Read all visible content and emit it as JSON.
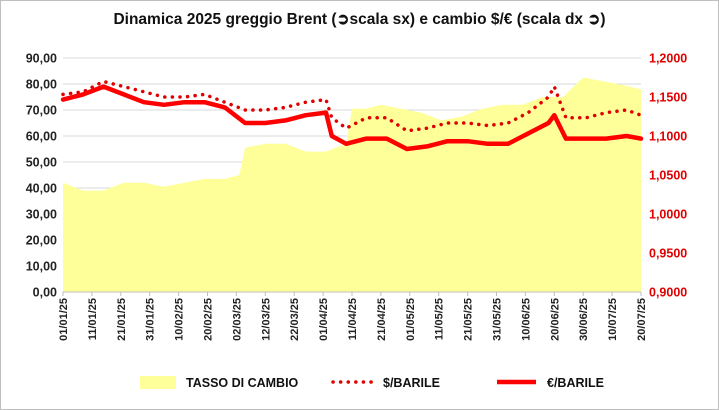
{
  "chart_data": {
    "type": "line",
    "title": "Dinamica 2025 greggio Brent (➲scala sx) e cambio $/€ (scala dx ➲)",
    "y_left": {
      "ylim": [
        0,
        90
      ],
      "ticks": [
        "0,00",
        "10,00",
        "20,00",
        "30,00",
        "40,00",
        "50,00",
        "60,00",
        "70,00",
        "80,00",
        "90,00"
      ]
    },
    "y_right": {
      "ylim": [
        0.9,
        1.2
      ],
      "ticks": [
        "0,9000",
        "0,9500",
        "1,0000",
        "1,0500",
        "1,1000",
        "1,1500",
        "1,2000"
      ]
    },
    "x_ticks": [
      "01/01/25",
      "11/01/25",
      "21/01/25",
      "31/01/25",
      "10/02/25",
      "20/02/25",
      "02/03/25",
      "12/03/25",
      "22/03/25",
      "01/04/25",
      "11/04/25",
      "21/04/25",
      "01/05/25",
      "11/05/25",
      "21/05/25",
      "31/05/25",
      "10/06/25",
      "20/06/25",
      "30/06/25",
      "10/07/25",
      "20/07/25"
    ],
    "grid": true,
    "legend_position": "bottom",
    "colors": {
      "exchange_area": "#ffff99",
      "usd_barrel": "#e00000",
      "eur_barrel": "#ff0000"
    },
    "series": [
      {
        "name": "TASSO DI CAMBIO",
        "axis": "right",
        "style": "area",
        "x": [
          "01/01/25",
          "08/01/25",
          "15/01/25",
          "22/01/25",
          "29/01/25",
          "05/02/25",
          "12/02/25",
          "19/02/25",
          "26/02/25",
          "03/03/25",
          "05/03/25",
          "12/03/25",
          "19/03/25",
          "26/03/25",
          "02/04/25",
          "09/04/25",
          "11/04/25",
          "16/04/25",
          "21/04/25",
          "28/04/25",
          "05/05/25",
          "12/05/25",
          "19/05/25",
          "26/05/25",
          "02/06/25",
          "09/06/25",
          "16/06/25",
          "23/06/25",
          "30/06/25",
          "07/07/25",
          "14/07/25",
          "20/07/25"
        ],
        "values": [
          1.04,
          1.03,
          1.03,
          1.04,
          1.04,
          1.035,
          1.04,
          1.045,
          1.045,
          1.05,
          1.085,
          1.09,
          1.09,
          1.08,
          1.08,
          1.09,
          1.135,
          1.135,
          1.14,
          1.135,
          1.13,
          1.12,
          1.125,
          1.135,
          1.14,
          1.14,
          1.15,
          1.15,
          1.175,
          1.17,
          1.165,
          1.16
        ]
      },
      {
        "name": "$/BARILE",
        "axis": "left",
        "style": "dotted",
        "x": [
          "01/01/25",
          "08/01/25",
          "15/01/25",
          "22/01/25",
          "29/01/25",
          "05/02/25",
          "12/02/25",
          "19/02/25",
          "26/02/25",
          "05/03/25",
          "12/03/25",
          "19/03/25",
          "26/03/25",
          "02/04/25",
          "04/04/25",
          "09/04/25",
          "16/04/25",
          "23/04/25",
          "30/04/25",
          "07/05/25",
          "14/05/25",
          "21/05/25",
          "28/05/25",
          "04/06/25",
          "11/06/25",
          "18/06/25",
          "20/06/25",
          "24/06/25",
          "01/07/25",
          "08/07/25",
          "15/07/25",
          "20/07/25"
        ],
        "values": [
          76,
          77,
          81,
          79,
          77,
          75,
          75,
          76,
          73,
          70,
          70,
          71,
          73,
          74,
          67,
          63,
          67,
          67,
          62,
          63,
          65,
          65,
          64,
          65,
          69,
          75,
          79,
          67,
          67,
          69,
          70,
          68
        ]
      },
      {
        "name": "€/BARILE",
        "axis": "left",
        "style": "solid",
        "x": [
          "01/01/25",
          "08/01/25",
          "15/01/25",
          "22/01/25",
          "29/01/25",
          "05/02/25",
          "12/02/25",
          "19/02/25",
          "26/02/25",
          "05/03/25",
          "12/03/25",
          "19/03/25",
          "26/03/25",
          "02/04/25",
          "04/04/25",
          "09/04/25",
          "16/04/25",
          "23/04/25",
          "30/04/25",
          "07/05/25",
          "14/05/25",
          "21/05/25",
          "28/05/25",
          "04/06/25",
          "11/06/25",
          "18/06/25",
          "20/06/25",
          "24/06/25",
          "01/07/25",
          "08/07/25",
          "15/07/25",
          "20/07/25"
        ],
        "values": [
          74,
          76,
          79,
          76,
          73,
          72,
          73,
          73,
          71,
          65,
          65,
          66,
          68,
          69,
          60,
          57,
          59,
          59,
          55,
          56,
          58,
          58,
          57,
          57,
          61,
          65,
          68,
          59,
          59,
          59,
          60,
          59
        ]
      }
    ]
  }
}
